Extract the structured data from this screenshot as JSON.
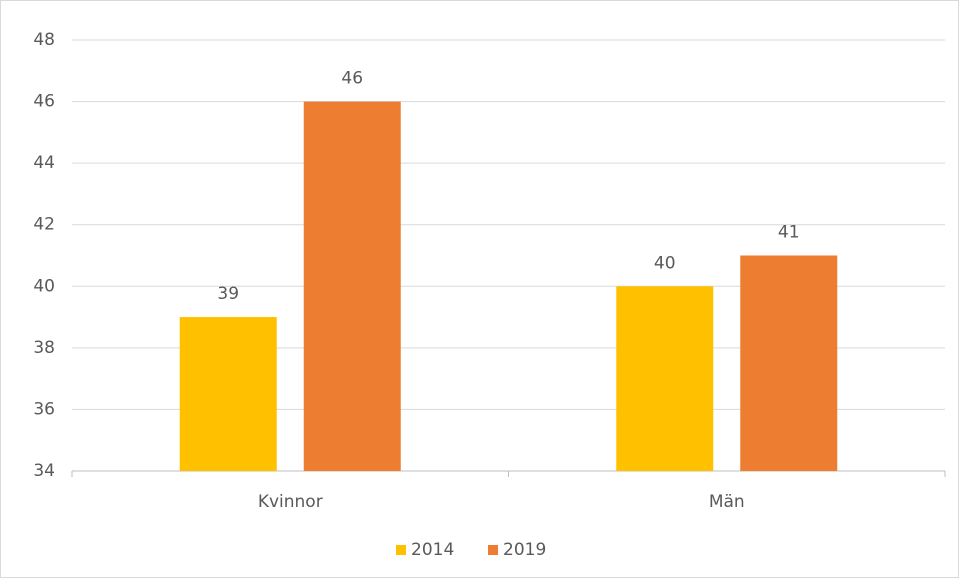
{
  "chart_data": {
    "type": "bar",
    "categories": [
      "Kvinnor",
      "Män"
    ],
    "series": [
      {
        "name": "2014",
        "color": "#ffc000",
        "values": [
          39,
          40
        ]
      },
      {
        "name": "2019",
        "color": "#ed7d31",
        "values": [
          46,
          41
        ]
      }
    ],
    "ylim": [
      34,
      48
    ],
    "yticks": [
      34,
      36,
      38,
      40,
      42,
      44,
      46,
      48
    ],
    "grid": true,
    "legend": "bottom"
  }
}
